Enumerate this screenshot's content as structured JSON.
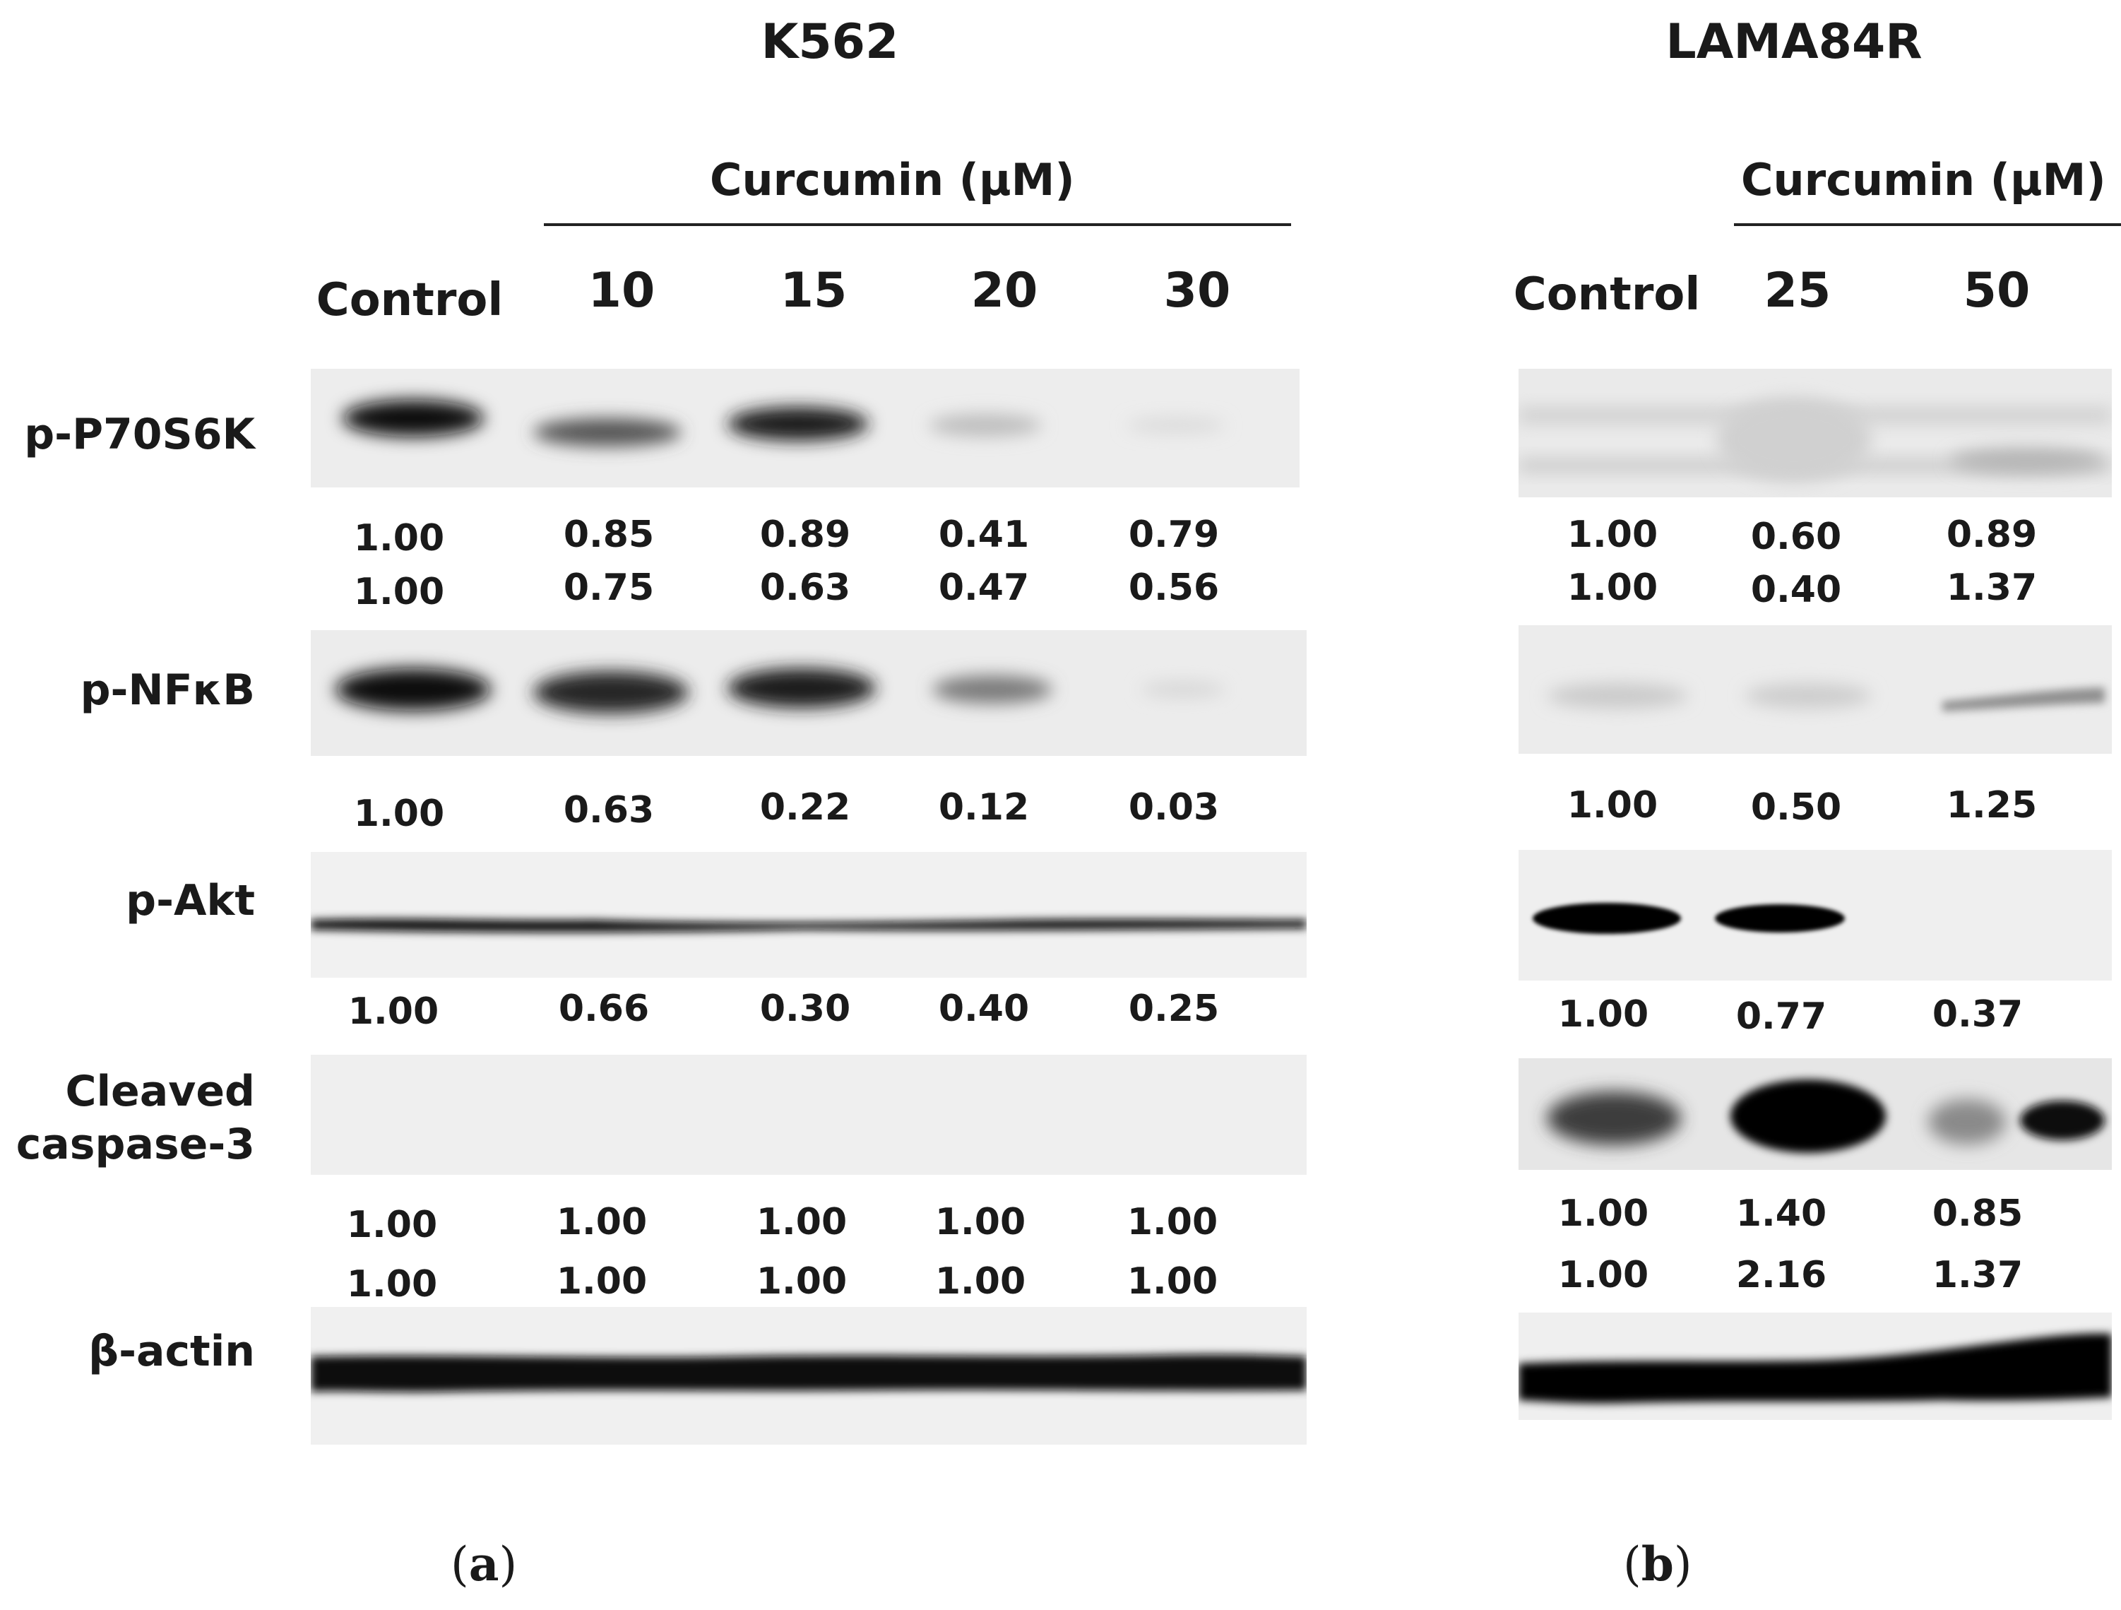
{
  "panel_a": {
    "title": "K562",
    "treatment": "Curcumin (μM)",
    "lanes": [
      "Control",
      "10",
      "15",
      "20",
      "30"
    ],
    "rows": {
      "p70s6k": {
        "label": "p-P70S6K",
        "quant": [
          [
            "1.00",
            "0.85",
            "0.89",
            "0.41",
            "0.79"
          ],
          [
            "1.00",
            "0.75",
            "0.63",
            "0.47",
            "0.56"
          ]
        ]
      },
      "nfkb": {
        "label": "p-NFκB",
        "quant": [
          [
            "1.00",
            "0.63",
            "0.22",
            "0.12",
            "0.03"
          ]
        ]
      },
      "akt": {
        "label": "p-Akt",
        "quant": [
          [
            "1.00",
            "0.66",
            "0.30",
            "0.40",
            "0.25"
          ]
        ]
      },
      "casp3": {
        "label_line1": "Cleaved",
        "label_line2": "caspase-3",
        "quant": [
          [
            "1.00",
            "1.00",
            "1.00",
            "1.00",
            "1.00"
          ],
          [
            "1.00",
            "1.00",
            "1.00",
            "1.00",
            "1.00"
          ]
        ]
      },
      "actin": {
        "label": "β-actin"
      }
    },
    "caption_open": "(",
    "caption_letter": "a",
    "caption_close": ")"
  },
  "panel_b": {
    "title": "LAMA84R",
    "treatment": "Curcumin (μM)",
    "lanes": [
      "Control",
      "25",
      "50"
    ],
    "rows": {
      "p70s6k": {
        "quant": [
          [
            "1.00",
            "0.60",
            "0.89"
          ],
          [
            "1.00",
            "0.40",
            "1.37"
          ]
        ]
      },
      "nfkb": {
        "quant": [
          [
            "1.00",
            "0.50",
            "1.25"
          ]
        ]
      },
      "akt": {
        "quant": [
          [
            "1.00",
            "0.77",
            "0.37"
          ]
        ]
      },
      "casp3": {
        "quant": [
          [
            "1.00",
            "1.40",
            "0.85"
          ],
          [
            "1.00",
            "2.16",
            "1.37"
          ]
        ]
      }
    },
    "caption_open": "(",
    "caption_letter": "b",
    "caption_close": ")"
  }
}
